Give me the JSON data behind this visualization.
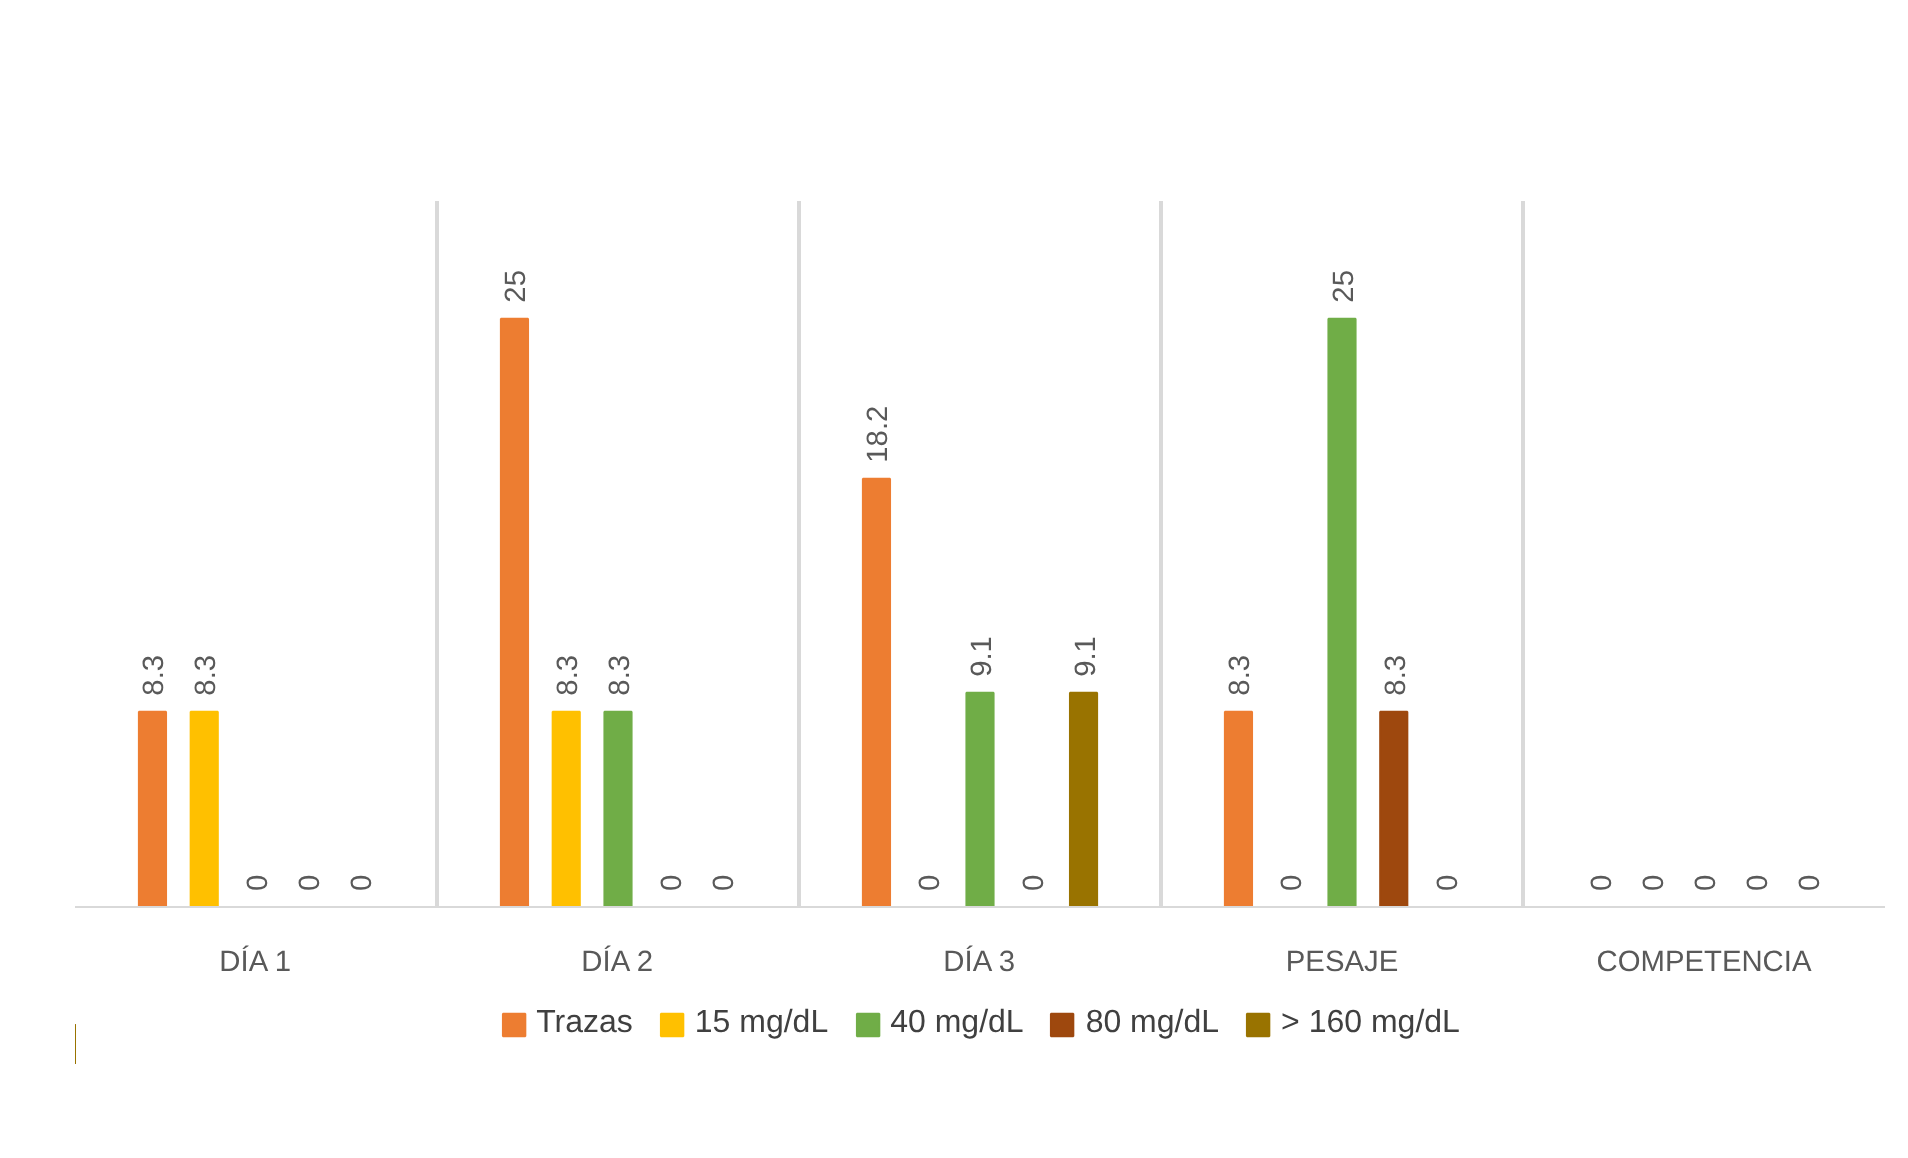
{
  "chart_data": {
    "type": "bar",
    "categories": [
      "DÍA 1",
      "DÍA 2",
      "DÍA 3",
      "PESAJE",
      "COMPETENCIA"
    ],
    "series": [
      {
        "name": "Trazas",
        "color": "#ed7d31",
        "values": [
          8.3,
          25,
          18.2,
          8.3,
          0
        ]
      },
      {
        "name": "15 mg/dL",
        "color": "#ffc000",
        "values": [
          8.3,
          8.3,
          0,
          0,
          0
        ]
      },
      {
        "name": "40 mg/dL",
        "color": "#70ad47",
        "values": [
          0,
          8.3,
          9.1,
          25,
          0
        ]
      },
      {
        "name": "80 mg/dL",
        "color": "#9e480e",
        "values": [
          0,
          0,
          0,
          8.3,
          0
        ]
      },
      {
        "name": "> 160 mg/dL",
        "color": "#997300",
        "values": [
          0,
          0,
          9.1,
          0,
          0
        ]
      }
    ],
    "ylim": [
      0,
      30
    ],
    "data_labels": true,
    "grid": "x",
    "legend": "bottom",
    "tick_labels": "x"
  }
}
